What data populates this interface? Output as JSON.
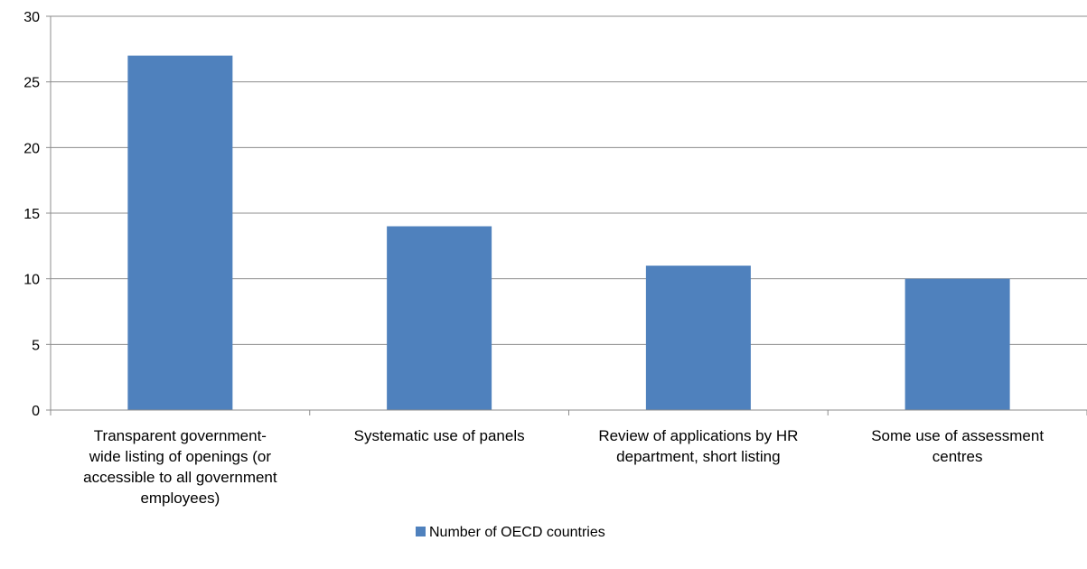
{
  "chart_data": {
    "type": "bar",
    "title": "",
    "xlabel": "",
    "ylabel": "",
    "ylim": [
      0,
      30
    ],
    "yticks": [
      0,
      5,
      10,
      15,
      20,
      25,
      30
    ],
    "grid": true,
    "legend_position": "bottom",
    "categories": [
      "Transparent government-wide listing of openings (or accessible to all government employees)",
      "Systematic use of panels",
      "Review of applications by HR department, short listing",
      "Some use of assessment centres"
    ],
    "category_lines": [
      [
        "Transparent government-",
        "wide listing of openings (or",
        "accessible to all government",
        "employees)"
      ],
      [
        "Systematic use of panels"
      ],
      [
        "Review of applications by HR",
        "department, short listing"
      ],
      [
        "Some use of assessment",
        "centres"
      ]
    ],
    "series": [
      {
        "name": "Number of OECD countries",
        "values": [
          27,
          14,
          11,
          10
        ],
        "color": "#4F81BD"
      }
    ]
  }
}
